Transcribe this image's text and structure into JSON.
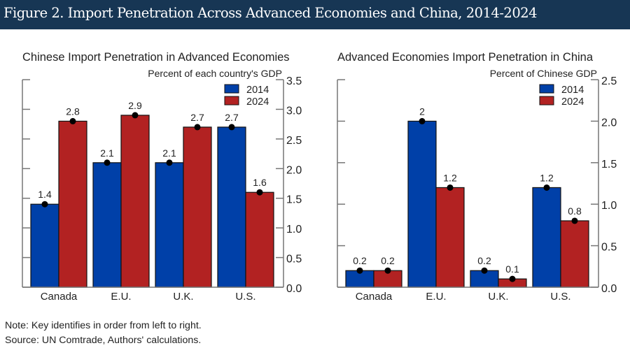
{
  "header": {
    "title": "Figure 2. Import Penetration Across Advanced Economies and China, 2014-2024",
    "background_color": "#173654"
  },
  "notes": {
    "note": "Note: Key identifies in order from left to right.",
    "source": "Source: UN Comtrade, Authors' calculations."
  },
  "chart_data": [
    {
      "type": "bar",
      "title": "Chinese Import Penetration in Advanced Economies",
      "ylabel": "Percent of each country's GDP",
      "xlabel": "",
      "categories": [
        "Canada",
        "E.U.",
        "U.K.",
        "U.S."
      ],
      "series": [
        {
          "name": "2014",
          "color": "#0040A8",
          "values": [
            1.4,
            2.1,
            2.1,
            2.7
          ],
          "labels": [
            "1.4",
            "2.1",
            "2.1",
            "2.7"
          ]
        },
        {
          "name": "2024",
          "color": "#B22222",
          "values": [
            2.8,
            2.9,
            2.7,
            1.6
          ],
          "labels": [
            "2.8",
            "2.9",
            "2.7",
            "1.6"
          ]
        }
      ],
      "ylim": [
        0,
        3.5
      ],
      "yticks": [
        "0.0",
        "0.5",
        "1.0",
        "1.5",
        "2.0",
        "2.5",
        "3.0",
        "3.5"
      ],
      "ytick_values": [
        0,
        0.5,
        1.0,
        1.5,
        2.0,
        2.5,
        3.0,
        3.5
      ],
      "y_axis_side": "right",
      "grid": false,
      "legend_position": "top-right"
    },
    {
      "type": "bar",
      "title": "Advanced Economies Import Penetration in China",
      "ylabel": "Percent of Chinese GDP",
      "xlabel": "",
      "categories": [
        "Canada",
        "E.U.",
        "U.K.",
        "U.S."
      ],
      "series": [
        {
          "name": "2014",
          "color": "#0040A8",
          "values": [
            0.2,
            2.0,
            0.2,
            1.2
          ],
          "labels": [
            "0.2",
            "2",
            "0.2",
            "1.2"
          ]
        },
        {
          "name": "2024",
          "color": "#B22222",
          "values": [
            0.2,
            1.2,
            0.1,
            0.8
          ],
          "labels": [
            "0.2",
            "1.2",
            "0.1",
            "0.8"
          ]
        }
      ],
      "ylim": [
        0,
        2.5
      ],
      "yticks": [
        "0.0",
        "0.5",
        "1.0",
        "1.5",
        "2.0",
        "2.5"
      ],
      "ytick_values": [
        0,
        0.5,
        1.0,
        1.5,
        2.0,
        2.5
      ],
      "y_axis_side": "right",
      "grid": false,
      "legend_position": "top-right"
    }
  ]
}
